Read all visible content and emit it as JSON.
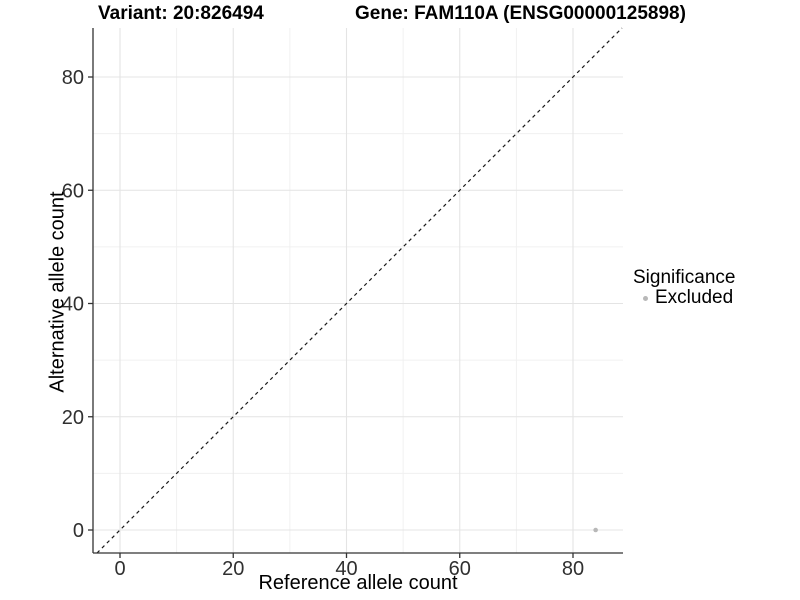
{
  "titles": {
    "variant": "Variant: 20:826494",
    "gene": "Gene: FAM110A (ENSG00000125898)"
  },
  "chart_data": {
    "type": "scatter",
    "title_variant": "Variant: 20:826494",
    "title_gene": "Gene: FAM110A (ENSG00000125898)",
    "xlabel": "Reference allele count",
    "ylabel": "Alternative allele count",
    "xlim": [
      -4.8,
      88.8
    ],
    "ylim": [
      -4.1,
      88.7
    ],
    "x_ticks": [
      0,
      20,
      40,
      60,
      80
    ],
    "y_ticks": [
      0,
      20,
      40,
      60,
      80
    ],
    "x_minor_ticks": [
      10,
      30,
      50,
      70
    ],
    "y_minor_ticks": [
      10,
      30,
      50,
      70
    ],
    "grid": true,
    "identity_line": {
      "present": true,
      "equation": "y = x",
      "style": "dashed"
    },
    "series": [
      {
        "name": "Excluded",
        "color": "#b8b8b8",
        "points": [
          {
            "x": 84,
            "y": 0
          }
        ]
      }
    ],
    "legend": {
      "title": "Significance",
      "position": "right",
      "items": [
        {
          "label": "Excluded",
          "color": "#b8b8b8"
        }
      ]
    },
    "colors": {
      "background": "#ffffff",
      "grid_major": "#e4e4e4",
      "grid_minor": "#f0f0f0",
      "axis": "#333333",
      "identity_line": "#1a1a1a",
      "tick_text": "#303030",
      "point": "#b8b8b8"
    }
  }
}
